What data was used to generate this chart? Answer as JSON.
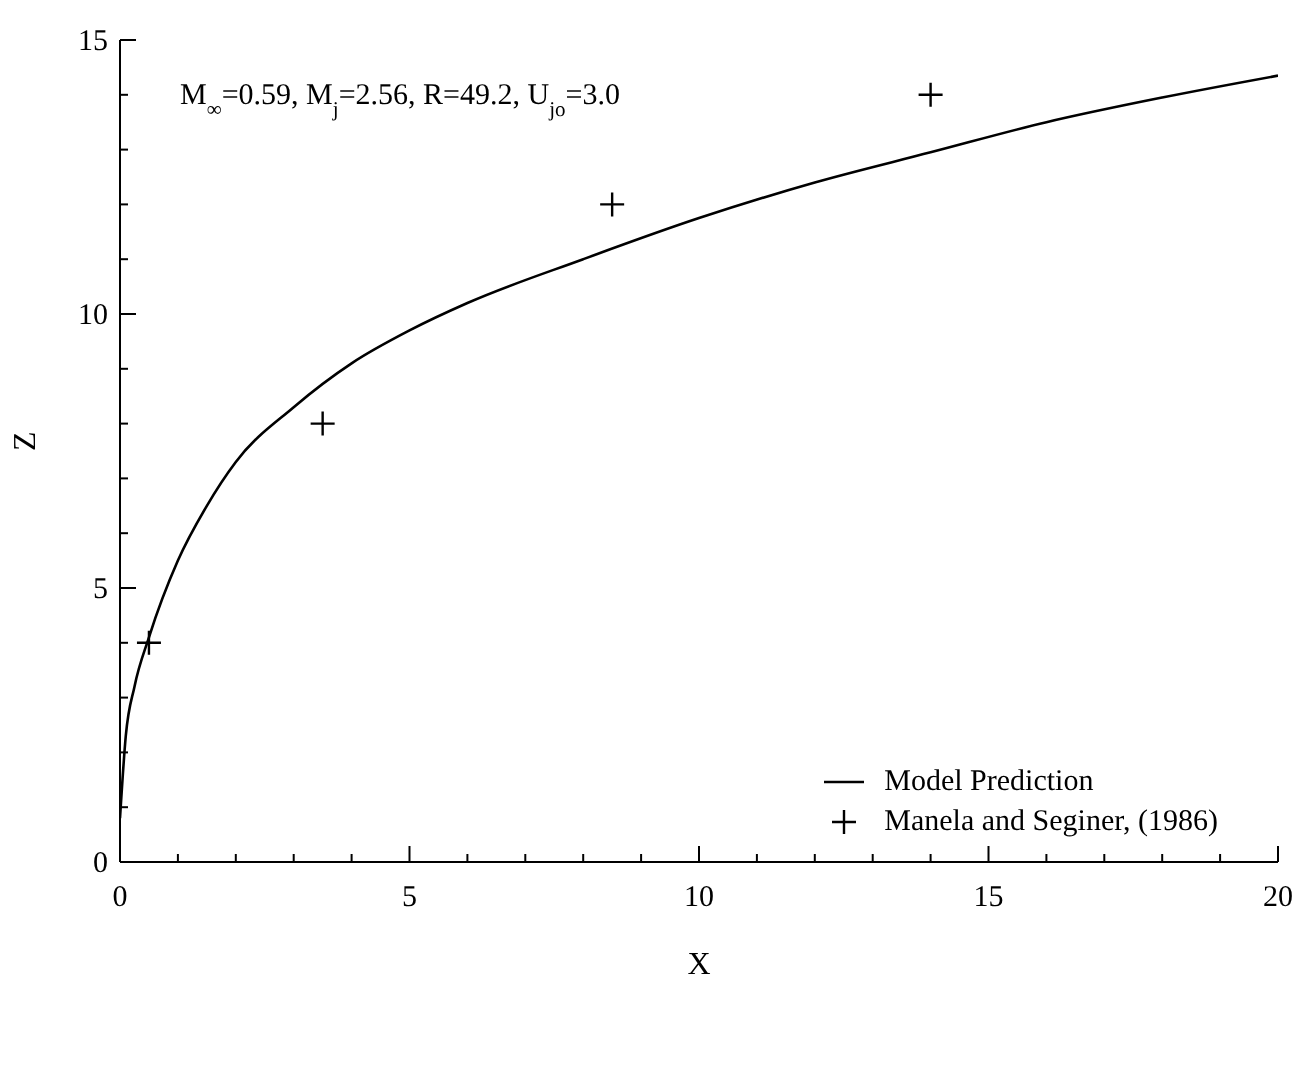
{
  "chart_data": {
    "type": "line",
    "xlabel": "X",
    "ylabel": "Z",
    "annotations": [
      "M$_{∞}$=0.59, M$_{j}$=2.56, R=49.2, U$_{jo}$=3.0"
    ],
    "xlim": [
      0,
      20
    ],
    "ylim": [
      0,
      15
    ],
    "xticks": [
      0,
      {
        "value": 1,
        "label": null
      },
      {
        "value": 2,
        "label": null
      },
      {
        "value": 3,
        "label": null
      },
      {
        "value": 4,
        "label": null
      },
      5,
      {
        "value": 6,
        "label": null
      },
      {
        "value": 7,
        "label": null
      },
      {
        "value": 8,
        "label": null
      },
      {
        "value": 9,
        "label": null
      },
      10,
      {
        "value": 11,
        "label": null
      },
      {
        "value": 12,
        "label": null
      },
      {
        "value": 13,
        "label": null
      },
      {
        "value": 14,
        "label": null
      },
      15,
      {
        "value": 16,
        "label": null
      },
      {
        "value": 17,
        "label": null
      },
      {
        "value": 18,
        "label": null
      },
      {
        "value": 19,
        "label": null
      },
      20
    ],
    "yticks": [
      0,
      {
        "value": 1,
        "label": null
      },
      {
        "value": 2,
        "label": null
      },
      {
        "value": 3,
        "label": null
      },
      {
        "value": 4,
        "label": null
      },
      5,
      {
        "value": 6,
        "label": null
      },
      {
        "value": 7,
        "label": null
      },
      {
        "value": 8,
        "label": null
      },
      {
        "value": 9,
        "label": null
      },
      10,
      {
        "value": 11,
        "label": null
      },
      {
        "value": 12,
        "label": null
      },
      {
        "value": 13,
        "label": null
      },
      {
        "value": 14,
        "label": null
      },
      15
    ],
    "legend": "bottom right",
    "series": [
      {
        "name": "Model Prediction",
        "color": "#000000",
        "marker": "none",
        "line_style": "solid",
        "x": [
          0,
          0.1,
          0.25,
          0.5,
          1,
          1.5,
          2,
          3,
          4,
          5,
          6,
          8,
          10,
          12,
          14,
          16,
          18,
          20
        ],
        "values": [
          0.8,
          2.3,
          3.2,
          4.1,
          5.5,
          6.5,
          7.3,
          8.3,
          9.1,
          9.7,
          10.2,
          11.0,
          11.75,
          12.4,
          12.95,
          13.5,
          13.95,
          14.35
        ]
      },
      {
        "name": "Manela and Seginer, (1986)",
        "type": "scatter",
        "color": "#000000",
        "marker": "cross",
        "x": [
          0.5,
          3.5,
          8.5,
          14
        ],
        "values": [
          4,
          8,
          12,
          14
        ]
      }
    ]
  }
}
